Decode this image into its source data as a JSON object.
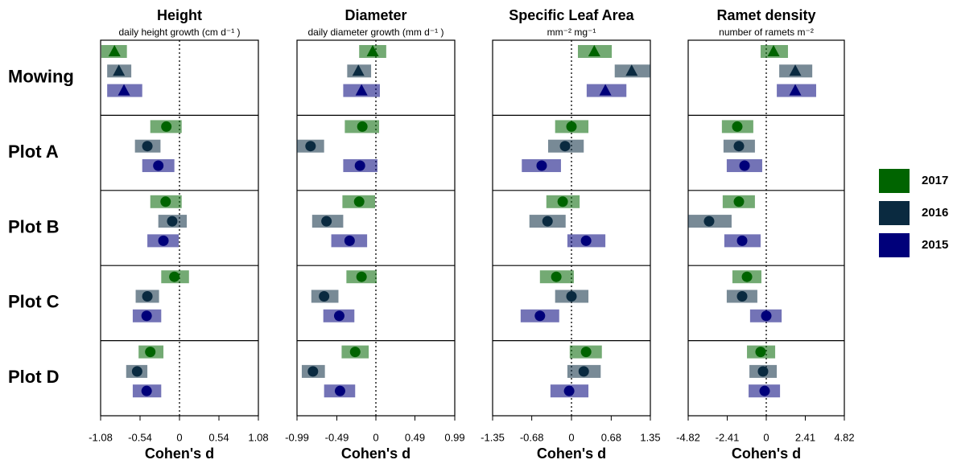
{
  "categories": [
    "Mowing",
    "Plot A",
    "Plot B",
    "Plot C",
    "Plot D"
  ],
  "markers": [
    "triangle",
    "circle",
    "circle",
    "circle",
    "circle"
  ],
  "legend": [
    {
      "name": "2017",
      "color": "#006400"
    },
    {
      "name": "2016",
      "color": "#0a2a40"
    },
    {
      "name": "2015",
      "color": "#00007a"
    }
  ],
  "chart_data": [
    {
      "type": "forest",
      "title": "Height",
      "subtitle": "daily height growth (cm d⁻¹ )",
      "xlabel": "Cohen's d",
      "xlim": [
        -1.08,
        1.08
      ],
      "xticks": [
        -1.08,
        -0.54,
        0,
        0.54,
        1.08
      ],
      "series": [
        {
          "values": [
            -0.89,
            -0.18,
            -0.19,
            -0.07,
            -0.4
          ],
          "low": [
            -1.07,
            -0.4,
            -0.4,
            -0.25,
            -0.56
          ],
          "high": [
            -0.72,
            0.03,
            0.03,
            0.13,
            -0.22
          ]
        },
        {
          "values": [
            -0.83,
            -0.44,
            -0.1,
            -0.44,
            -0.58
          ],
          "low": [
            -0.99,
            -0.61,
            -0.29,
            -0.6,
            -0.73
          ],
          "high": [
            -0.66,
            -0.26,
            0.1,
            -0.28,
            -0.44
          ]
        },
        {
          "values": [
            -0.76,
            -0.29,
            -0.22,
            -0.45,
            -0.45
          ],
          "low": [
            -0.99,
            -0.51,
            -0.44,
            -0.64,
            -0.64
          ],
          "high": [
            -0.51,
            -0.07,
            -0.01,
            -0.25,
            -0.25
          ]
        }
      ]
    },
    {
      "type": "forest",
      "title": "Diameter",
      "subtitle": "daily diameter growth (mm d⁻¹ )",
      "xlabel": "Cohen's d",
      "xlim": [
        -0.99,
        0.99
      ],
      "xticks": [
        -0.99,
        -0.49,
        0,
        0.49,
        0.99
      ],
      "series": [
        {
          "values": [
            -0.04,
            -0.17,
            -0.21,
            -0.18,
            -0.26
          ],
          "low": [
            -0.21,
            -0.39,
            -0.42,
            -0.37,
            -0.43
          ],
          "high": [
            0.13,
            0.04,
            -0.01,
            0.01,
            -0.09
          ]
        },
        {
          "values": [
            -0.22,
            -0.82,
            -0.62,
            -0.65,
            -0.79
          ],
          "low": [
            -0.36,
            -0.99,
            -0.8,
            -0.81,
            -0.93
          ],
          "high": [
            -0.06,
            -0.65,
            -0.41,
            -0.47,
            -0.64
          ]
        },
        {
          "values": [
            -0.18,
            -0.2,
            -0.33,
            -0.46,
            -0.45
          ],
          "low": [
            -0.41,
            -0.41,
            -0.56,
            -0.66,
            -0.65
          ],
          "high": [
            0.05,
            0.02,
            -0.11,
            -0.27,
            -0.26
          ]
        }
      ]
    },
    {
      "type": "forest",
      "title": "Specific Leaf Area",
      "subtitle": "mm⁻²  mg⁻¹",
      "xlabel": "Cohen's d",
      "xlim": [
        -1.35,
        1.35
      ],
      "xticks": [
        -1.35,
        -0.68,
        0,
        0.68,
        1.35
      ],
      "series": [
        {
          "values": [
            0.39,
            0.0,
            -0.15,
            -0.26,
            0.25
          ],
          "low": [
            0.11,
            -0.28,
            -0.43,
            -0.54,
            -0.03
          ],
          "high": [
            0.69,
            0.29,
            0.14,
            0.04,
            0.52
          ]
        },
        {
          "values": [
            1.03,
            -0.11,
            -0.41,
            0.0,
            0.21
          ],
          "low": [
            0.74,
            -0.4,
            -0.72,
            -0.28,
            -0.07
          ],
          "high": [
            1.35,
            0.21,
            -0.1,
            0.29,
            0.5
          ]
        },
        {
          "values": [
            0.58,
            -0.51,
            0.25,
            -0.54,
            -0.04
          ],
          "low": [
            0.26,
            -0.85,
            -0.07,
            -0.87,
            -0.36
          ],
          "high": [
            0.94,
            -0.18,
            0.58,
            -0.21,
            0.29
          ]
        }
      ]
    },
    {
      "type": "forest",
      "title": "Ramet density",
      "subtitle": "number of ramets m⁻²",
      "xlabel": "Cohen's d",
      "xlim": [
        -4.82,
        4.82
      ],
      "xticks": [
        -4.82,
        -2.41,
        0,
        2.41,
        4.82
      ],
      "series": [
        {
          "values": [
            0.45,
            -1.79,
            -1.69,
            -1.19,
            -0.35
          ],
          "low": [
            -0.35,
            -2.74,
            -2.69,
            -2.09,
            -1.19
          ],
          "high": [
            1.34,
            -0.8,
            -0.7,
            -0.3,
            0.55
          ]
        },
        {
          "values": [
            1.79,
            -1.69,
            -3.53,
            -1.49,
            -0.2
          ],
          "low": [
            0.8,
            -2.64,
            -4.82,
            -2.44,
            -1.04
          ],
          "high": [
            2.84,
            -0.7,
            -2.14,
            -0.55,
            0.65
          ]
        },
        {
          "values": [
            1.79,
            -1.34,
            -1.49,
            0.0,
            -0.1
          ],
          "low": [
            0.65,
            -2.44,
            -2.59,
            -1.0,
            -1.09
          ],
          "high": [
            3.08,
            -0.25,
            -0.35,
            0.95,
            0.85
          ]
        }
      ]
    }
  ]
}
